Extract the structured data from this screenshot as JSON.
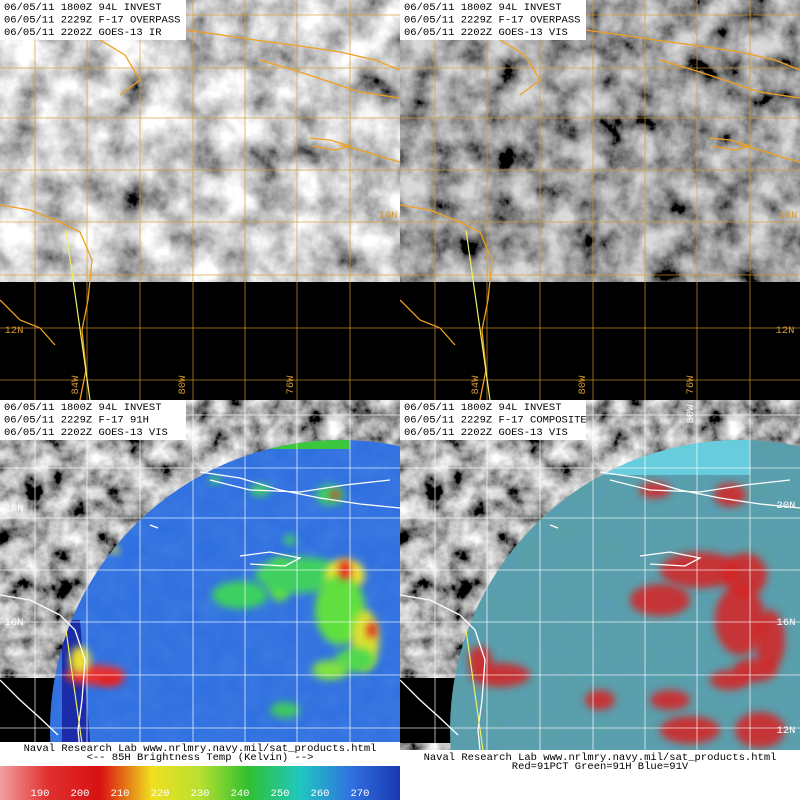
{
  "panels": [
    {
      "header": [
        "06/05/11 1800Z 94L INVEST",
        "06/05/11 2229Z F-17 OVERPASS",
        "06/05/11 2202Z GOES-13 IR"
      ],
      "grid_labels": [
        "84W",
        "80W",
        "76W",
        "12N",
        "16N"
      ]
    },
    {
      "header": [
        "06/05/11 1800Z 94L INVEST",
        "06/05/11 2229Z F-17 OVERPASS",
        "06/05/11 2202Z GOES-13 VIS"
      ],
      "grid_labels": [
        "84W",
        "80W",
        "76W",
        "12N",
        "16N"
      ]
    },
    {
      "header": [
        "06/05/11 1800Z 94L INVEST",
        "06/05/11 2229Z F-17 91H",
        "06/05/11 2202Z GOES-13 VIS"
      ],
      "grid_labels": [
        "20N",
        "16N"
      ]
    },
    {
      "header": [
        "06/05/11 1800Z 94L INVEST",
        "06/05/11 2229Z F-17 COMPOSITE",
        "06/05/11 2202Z GOES-13 VIS"
      ],
      "grid_labels": [
        "80W",
        "20N",
        "16N",
        "12N"
      ]
    }
  ],
  "footer_left": {
    "lines": [
      "Naval Research Lab  www.nrlmry.navy.mil/sat_products.html",
      "<--   85H Brightness Temp (Kelvin)   -->"
    ],
    "colorbar_ticks": [
      190,
      200,
      210,
      220,
      230,
      240,
      250,
      260,
      270
    ]
  },
  "footer_right": {
    "lines": [
      "Naval Research Lab  www.nrlmry.navy.mil/sat_products.html",
      "Red=91PCT  Green=91H  Blue=91V"
    ]
  }
}
